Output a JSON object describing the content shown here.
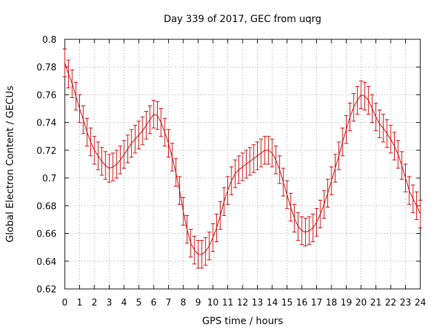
{
  "chart_data": {
    "type": "line",
    "title": "Day 339 of 2017, GEC from uqrg",
    "xlabel": "GPS time / hours",
    "ylabel": "Global Electron Content / GECUs",
    "xlim": [
      0,
      24
    ],
    "ylim": [
      0.62,
      0.8
    ],
    "x_ticks": [
      0,
      1,
      2,
      3,
      4,
      5,
      6,
      7,
      8,
      9,
      10,
      11,
      12,
      13,
      14,
      15,
      16,
      17,
      18,
      19,
      20,
      21,
      22,
      23,
      24
    ],
    "y_ticks": [
      0.62,
      0.64,
      0.66,
      0.68,
      0.7,
      0.72,
      0.74,
      0.76,
      0.78,
      0.8
    ],
    "y_tick_labels": [
      "0.62",
      "0.64",
      "0.66",
      "0.68",
      "0.7",
      "0.72",
      "0.74",
      "0.76",
      "0.78",
      "0.8"
    ],
    "grid": true,
    "error_bar_halfwidth": 0.01,
    "series_color": "#cc0000",
    "x": [
      0.0,
      0.25,
      0.5,
      0.75,
      1.0,
      1.25,
      1.5,
      1.75,
      2.0,
      2.25,
      2.5,
      2.75,
      3.0,
      3.25,
      3.5,
      3.75,
      4.0,
      4.25,
      4.5,
      4.75,
      5.0,
      5.25,
      5.5,
      5.75,
      6.0,
      6.25,
      6.5,
      6.75,
      7.0,
      7.25,
      7.5,
      7.75,
      8.0,
      8.25,
      8.5,
      8.75,
      9.0,
      9.25,
      9.5,
      9.75,
      10.0,
      10.25,
      10.5,
      10.75,
      11.0,
      11.25,
      11.5,
      11.75,
      12.0,
      12.25,
      12.5,
      12.75,
      13.0,
      13.25,
      13.5,
      13.75,
      14.0,
      14.25,
      14.5,
      14.75,
      15.0,
      15.25,
      15.5,
      15.75,
      16.0,
      16.25,
      16.5,
      16.75,
      17.0,
      17.25,
      17.5,
      17.75,
      18.0,
      18.25,
      18.5,
      18.75,
      19.0,
      19.25,
      19.5,
      19.75,
      20.0,
      20.25,
      20.5,
      20.75,
      21.0,
      21.25,
      21.5,
      21.75,
      22.0,
      22.25,
      22.5,
      22.75,
      23.0,
      23.25,
      23.5,
      23.75,
      24.0
    ],
    "y": [
      0.783,
      0.775,
      0.768,
      0.759,
      0.75,
      0.742,
      0.733,
      0.726,
      0.72,
      0.716,
      0.712,
      0.709,
      0.707,
      0.708,
      0.71,
      0.713,
      0.717,
      0.721,
      0.725,
      0.728,
      0.731,
      0.734,
      0.738,
      0.742,
      0.746,
      0.745,
      0.74,
      0.733,
      0.725,
      0.715,
      0.704,
      0.691,
      0.676,
      0.663,
      0.653,
      0.648,
      0.645,
      0.645,
      0.647,
      0.651,
      0.657,
      0.664,
      0.673,
      0.683,
      0.691,
      0.698,
      0.703,
      0.706,
      0.708,
      0.71,
      0.712,
      0.714,
      0.716,
      0.718,
      0.72,
      0.72,
      0.718,
      0.713,
      0.706,
      0.697,
      0.688,
      0.679,
      0.671,
      0.665,
      0.662,
      0.661,
      0.662,
      0.664,
      0.668,
      0.674,
      0.681,
      0.689,
      0.698,
      0.707,
      0.716,
      0.726,
      0.735,
      0.744,
      0.751,
      0.756,
      0.76,
      0.759,
      0.756,
      0.75,
      0.744,
      0.739,
      0.736,
      0.732,
      0.728,
      0.723,
      0.717,
      0.709,
      0.7,
      0.691,
      0.685,
      0.68,
      0.674
    ]
  }
}
